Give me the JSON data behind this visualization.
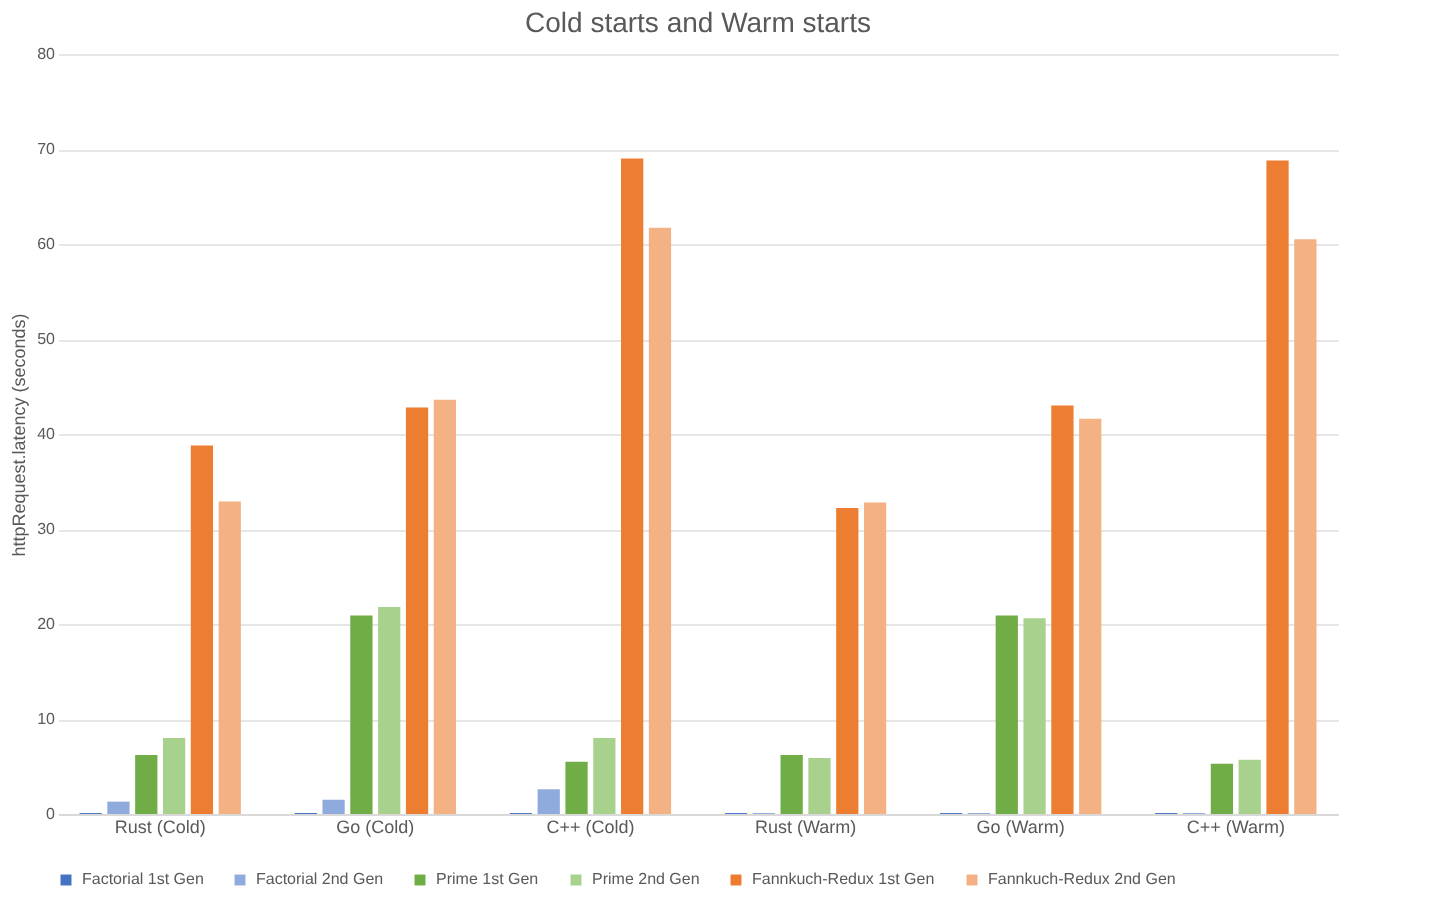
{
  "chart_data": {
    "type": "bar",
    "title": "Cold starts and Warm starts",
    "ylabel": "httpRequest.latency (seconds)",
    "categories": [
      "Rust (Cold)",
      "Go (Cold)",
      "C++ (Cold)",
      "Rust (Warm)",
      "Go (Warm)",
      "C++ (Warm)"
    ],
    "series": [
      {
        "name": "Factorial 1st Gen",
        "color": "#4472c4",
        "values": [
          0.1,
          0.1,
          0.1,
          0.1,
          0.1,
          0.1
        ]
      },
      {
        "name": "Factorial 2nd Gen",
        "color": "#8faadc",
        "values": [
          1.3,
          1.5,
          2.6,
          0.1,
          0.1,
          0.1
        ]
      },
      {
        "name": "Prime 1st Gen",
        "color": "#70ad47",
        "values": [
          6.2,
          20.9,
          5.5,
          6.2,
          20.9,
          5.3
        ]
      },
      {
        "name": "Prime 2nd Gen",
        "color": "#a9d18e",
        "values": [
          8.0,
          21.8,
          8.0,
          5.9,
          20.6,
          5.7
        ]
      },
      {
        "name": "Fannkuch-Redux 1st Gen",
        "color": "#ed7d31",
        "values": [
          38.8,
          42.8,
          69.0,
          32.2,
          43.0,
          68.8
        ]
      },
      {
        "name": "Fannkuch-Redux 2nd Gen",
        "color": "#f4b183",
        "values": [
          32.9,
          43.6,
          61.7,
          32.8,
          41.6,
          60.5
        ]
      }
    ],
    "ylim": [
      0,
      80
    ],
    "yticks": [
      0,
      10,
      20,
      30,
      40,
      50,
      60,
      70,
      80
    ],
    "grid": "y",
    "legend": "bottom"
  }
}
